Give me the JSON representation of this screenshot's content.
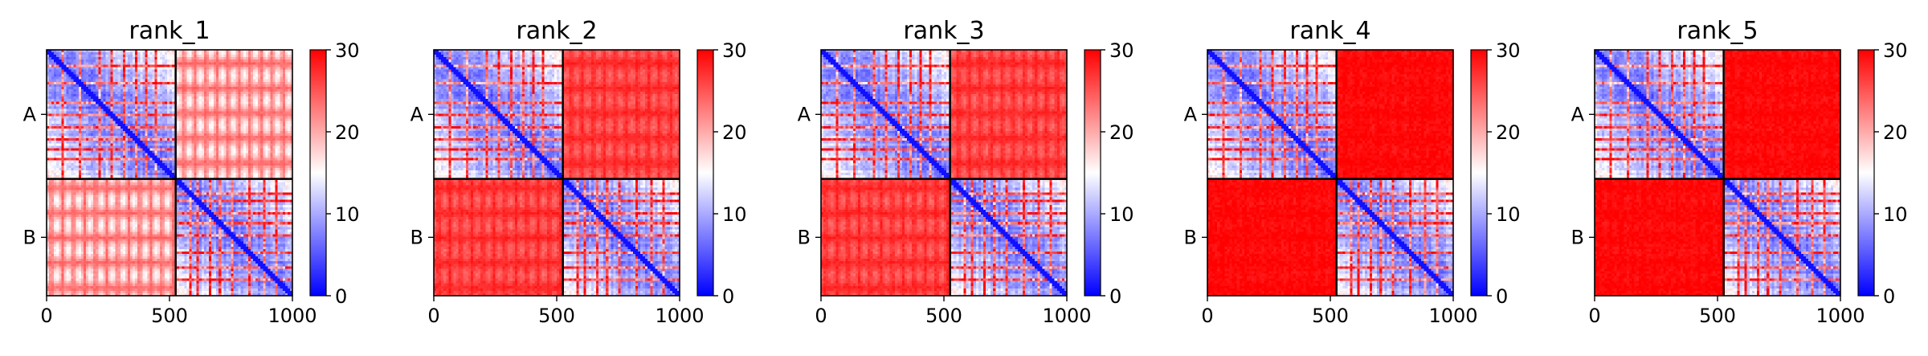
{
  "chart_data": {
    "type": "heatmap",
    "panels": [
      {
        "title": "rank_1",
        "off_diag_level": 24,
        "stripe_amp": 9
      },
      {
        "title": "rank_2",
        "off_diag_level": 28,
        "stripe_amp": 4
      },
      {
        "title": "rank_3",
        "off_diag_level": 28,
        "stripe_amp": 4
      },
      {
        "title": "rank_4",
        "off_diag_level": 30,
        "stripe_amp": 1
      },
      {
        "title": "rank_5",
        "off_diag_level": 30,
        "stripe_amp": 1
      }
    ],
    "xlim": [
      0,
      1000
    ],
    "xticks": [
      0,
      500,
      1000
    ],
    "xtick_labels": [
      "0",
      "500",
      "1000"
    ],
    "chains": [
      {
        "label": "A",
        "start": 0,
        "end": 525
      },
      {
        "label": "B",
        "start": 525,
        "end": 1000
      }
    ],
    "colorbar": {
      "min": 0,
      "max": 30,
      "ticks": [
        0,
        10,
        20,
        30
      ],
      "tick_labels": [
        "0",
        "10",
        "20",
        "30"
      ],
      "colormap": "bwr"
    },
    "colors": {
      "low": "#0000ff",
      "mid": "#ffffff",
      "high": "#ff0000",
      "frame": "#000000"
    }
  }
}
